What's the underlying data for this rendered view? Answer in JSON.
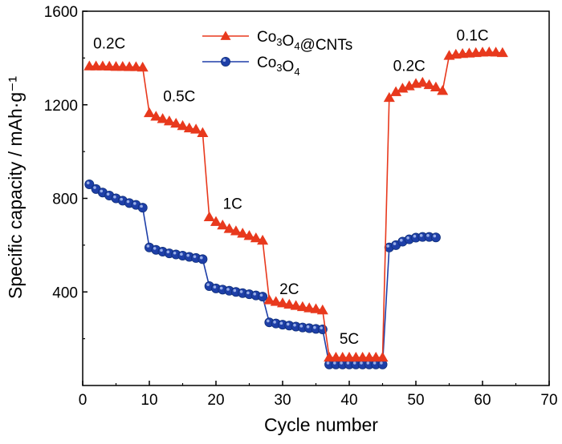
{
  "chart_data": {
    "type": "line",
    "xlabel": "Cycle  number",
    "ylabel": "Specific capacity / mAh·g⁻¹",
    "xlim": [
      0,
      70
    ],
    "ylim": [
      0,
      1600
    ],
    "x_ticks": [
      "0",
      "10",
      "20",
      "30",
      "40",
      "50",
      "60",
      "70"
    ],
    "y_ticks": [
      "400",
      "800",
      "1200",
      "1600"
    ],
    "legend_position": "top-center",
    "series": [
      {
        "name": "Co3O4@CNTs",
        "legend_parts": [
          {
            "t": "Co",
            "sub": false
          },
          {
            "t": "3",
            "sub": true
          },
          {
            "t": "O",
            "sub": false
          },
          {
            "t": "4",
            "sub": true
          },
          {
            "t": "@CNTs",
            "sub": false
          }
        ],
        "color": "#e8391d",
        "marker": "triangle",
        "x": [
          1,
          2,
          3,
          4,
          5,
          6,
          7,
          8,
          9,
          10,
          11,
          12,
          13,
          14,
          15,
          16,
          17,
          18,
          19,
          20,
          21,
          22,
          23,
          24,
          25,
          26,
          27,
          28,
          29,
          30,
          31,
          32,
          33,
          34,
          35,
          36,
          37,
          38,
          39,
          40,
          41,
          42,
          43,
          44,
          45,
          46,
          47,
          48,
          49,
          50,
          51,
          52,
          53,
          54,
          55,
          56,
          57,
          58,
          59,
          60,
          61,
          62,
          63
        ],
        "y": [
          1365,
          1365,
          1365,
          1364,
          1363,
          1363,
          1362,
          1362,
          1360,
          1165,
          1150,
          1140,
          1130,
          1120,
          1110,
          1100,
          1095,
          1080,
          720,
          700,
          685,
          670,
          660,
          650,
          640,
          630,
          620,
          365,
          358,
          352,
          346,
          341,
          336,
          331,
          327,
          322,
          120,
          120,
          120,
          120,
          120,
          120,
          120,
          120,
          120,
          1230,
          1255,
          1270,
          1280,
          1290,
          1295,
          1285,
          1275,
          1260,
          1410,
          1415,
          1418,
          1420,
          1422,
          1424,
          1425,
          1424,
          1422
        ]
      },
      {
        "name": "Co3O4",
        "legend_parts": [
          {
            "t": "Co",
            "sub": false
          },
          {
            "t": "3",
            "sub": true
          },
          {
            "t": "O",
            "sub": false
          },
          {
            "t": "4",
            "sub": true
          }
        ],
        "color": "#1e3fa8",
        "marker": "circle",
        "x": [
          1,
          2,
          3,
          4,
          5,
          6,
          7,
          8,
          9,
          10,
          11,
          12,
          13,
          14,
          15,
          16,
          17,
          18,
          19,
          20,
          21,
          22,
          23,
          24,
          25,
          26,
          27,
          28,
          29,
          30,
          31,
          32,
          33,
          34,
          35,
          36,
          37,
          38,
          39,
          40,
          41,
          42,
          43,
          44,
          45,
          46,
          47,
          48,
          49,
          50,
          51,
          52,
          53
        ],
        "y": [
          860,
          840,
          825,
          812,
          800,
          790,
          780,
          772,
          760,
          590,
          580,
          572,
          565,
          560,
          555,
          550,
          545,
          540,
          425,
          415,
          410,
          405,
          400,
          395,
          390,
          385,
          380,
          270,
          265,
          260,
          256,
          252,
          248,
          245,
          242,
          240,
          90,
          90,
          90,
          90,
          90,
          90,
          90,
          90,
          90,
          590,
          600,
          615,
          625,
          632,
          635,
          635,
          633
        ]
      }
    ],
    "annotations": [
      {
        "text": "0.2C",
        "x": 4,
        "y": 1440
      },
      {
        "text": "0.5C",
        "x": 14.5,
        "y": 1215
      },
      {
        "text": "1C",
        "x": 22.5,
        "y": 755
      },
      {
        "text": "2C",
        "x": 31,
        "y": 390
      },
      {
        "text": "5C",
        "x": 40,
        "y": 178
      },
      {
        "text": "0.2C",
        "x": 49,
        "y": 1345
      },
      {
        "text": "0.1C",
        "x": 58.5,
        "y": 1475
      }
    ]
  }
}
